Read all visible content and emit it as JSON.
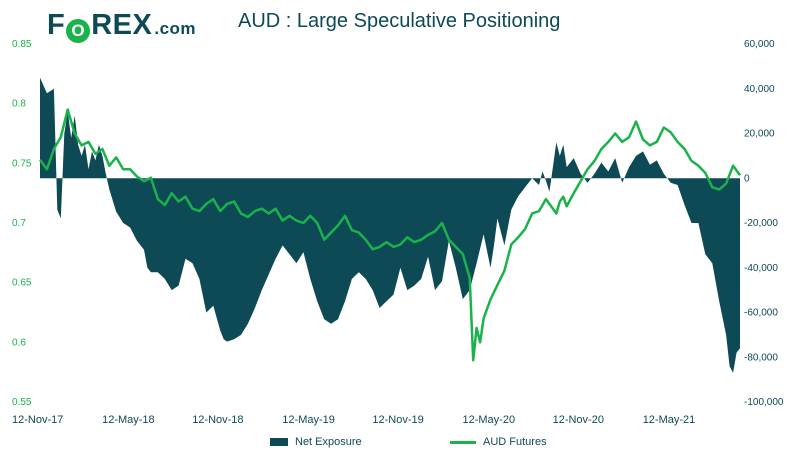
{
  "logo": {
    "prefix": "F",
    "mark": "O",
    "main": "REX",
    "suffix": ".com"
  },
  "chart_data": {
    "type": "area+line",
    "title": "AUD : Large Speculative Positioning",
    "left_axis": {
      "label": "AUD Futures",
      "ylim": [
        0.55,
        0.85
      ],
      "ticks": [
        "0.85",
        "0.8",
        "0.75",
        "0.7",
        "0.65",
        "0.6",
        "0.55"
      ],
      "tick_values": [
        0.85,
        0.8,
        0.75,
        0.7,
        0.65,
        0.6,
        0.55
      ]
    },
    "right_axis": {
      "label": "Net Exposure",
      "ylim": [
        -100000,
        60000
      ],
      "ticks": [
        "60,000",
        "40,000",
        "20,000",
        "0",
        "-20,000",
        "-40,000",
        "-60,000",
        "-80,000",
        "-100,000"
      ],
      "tick_values": [
        60000,
        40000,
        20000,
        0,
        -20000,
        -40000,
        -60000,
        -80000,
        -100000
      ]
    },
    "x_ticks": [
      "12-Nov-17",
      "12-May-18",
      "12-Nov-18",
      "12-May-19",
      "12-Nov-19",
      "12-May-20",
      "12-Nov-20",
      "12-May-21"
    ],
    "x_tick_t": [
      0,
      26,
      52,
      78,
      104,
      130,
      156,
      182
    ],
    "t_max": 202,
    "series": [
      {
        "name": "Net Exposure",
        "axis": "right",
        "color": "#0d4a55",
        "points": [
          [
            0,
            45000
          ],
          [
            2,
            38000
          ],
          [
            4,
            40000
          ],
          [
            5,
            -14000
          ],
          [
            6,
            -18000
          ],
          [
            7,
            20000
          ],
          [
            8,
            30000
          ],
          [
            9,
            18000
          ],
          [
            10,
            28000
          ],
          [
            11,
            15000
          ],
          [
            12,
            10000
          ],
          [
            13,
            15000
          ],
          [
            14,
            4000
          ],
          [
            15,
            12000
          ],
          [
            16,
            8000
          ],
          [
            17,
            15000
          ],
          [
            18,
            10000
          ],
          [
            19,
            2000
          ],
          [
            20,
            -5000
          ],
          [
            22,
            -15000
          ],
          [
            24,
            -20000
          ],
          [
            26,
            -22000
          ],
          [
            28,
            -28000
          ],
          [
            30,
            -32000
          ],
          [
            31,
            -40000
          ],
          [
            32,
            -42000
          ],
          [
            34,
            -42000
          ],
          [
            36,
            -45000
          ],
          [
            38,
            -50000
          ],
          [
            40,
            -48000
          ],
          [
            42,
            -36000
          ],
          [
            44,
            -38000
          ],
          [
            46,
            -45000
          ],
          [
            48,
            -60000
          ],
          [
            50,
            -57000
          ],
          [
            52,
            -68000
          ],
          [
            53,
            -72000
          ],
          [
            54,
            -73000
          ],
          [
            56,
            -72000
          ],
          [
            58,
            -70000
          ],
          [
            60,
            -65000
          ],
          [
            62,
            -58000
          ],
          [
            64,
            -50000
          ],
          [
            66,
            -43000
          ],
          [
            68,
            -36000
          ],
          [
            70,
            -30000
          ],
          [
            72,
            -34000
          ],
          [
            74,
            -38000
          ],
          [
            76,
            -33000
          ],
          [
            78,
            -45000
          ],
          [
            80,
            -55000
          ],
          [
            82,
            -63000
          ],
          [
            84,
            -65000
          ],
          [
            86,
            -63000
          ],
          [
            88,
            -55000
          ],
          [
            90,
            -45000
          ],
          [
            92,
            -42000
          ],
          [
            94,
            -45000
          ],
          [
            96,
            -50000
          ],
          [
            98,
            -58000
          ],
          [
            100,
            -55000
          ],
          [
            102,
            -52000
          ],
          [
            104,
            -40000
          ],
          [
            106,
            -50000
          ],
          [
            108,
            -48000
          ],
          [
            110,
            -45000
          ],
          [
            112,
            -35000
          ],
          [
            114,
            -50000
          ],
          [
            116,
            -46000
          ],
          [
            118,
            -28000
          ],
          [
            120,
            -40000
          ],
          [
            122,
            -54000
          ],
          [
            124,
            -50000
          ],
          [
            126,
            -38000
          ],
          [
            128,
            -25000
          ],
          [
            130,
            -40000
          ],
          [
            131,
            -30000
          ],
          [
            132,
            -18000
          ],
          [
            134,
            -30000
          ],
          [
            136,
            -14000
          ],
          [
            138,
            -8000
          ],
          [
            140,
            -4000
          ],
          [
            142,
            0
          ],
          [
            144,
            -3000
          ],
          [
            145,
            3000
          ],
          [
            146,
            -1000
          ],
          [
            147,
            -6000
          ],
          [
            148,
            5000
          ],
          [
            149,
            16000
          ],
          [
            150,
            10000
          ],
          [
            151,
            15000
          ],
          [
            152,
            5000
          ],
          [
            154,
            9000
          ],
          [
            156,
            2000
          ],
          [
            158,
            -2000
          ],
          [
            160,
            2000
          ],
          [
            162,
            7000
          ],
          [
            164,
            3000
          ],
          [
            166,
            9000
          ],
          [
            168,
            -2000
          ],
          [
            170,
            5000
          ],
          [
            172,
            10000
          ],
          [
            174,
            12000
          ],
          [
            176,
            6000
          ],
          [
            178,
            8000
          ],
          [
            180,
            2000
          ],
          [
            182,
            -2000
          ],
          [
            184,
            -3000
          ],
          [
            186,
            -12000
          ],
          [
            188,
            -20000
          ],
          [
            190,
            -20000
          ],
          [
            192,
            -34000
          ],
          [
            194,
            -38000
          ],
          [
            196,
            -55000
          ],
          [
            198,
            -70000
          ],
          [
            199,
            -84000
          ],
          [
            200,
            -87000
          ],
          [
            201,
            -78000
          ],
          [
            202,
            -76000
          ]
        ]
      },
      {
        "name": "AUD Futures",
        "axis": "left",
        "color": "#19b24b",
        "points": [
          [
            0,
            0.753
          ],
          [
            2,
            0.745
          ],
          [
            4,
            0.762
          ],
          [
            6,
            0.772
          ],
          [
            8,
            0.795
          ],
          [
            10,
            0.775
          ],
          [
            12,
            0.765
          ],
          [
            14,
            0.768
          ],
          [
            16,
            0.758
          ],
          [
            18,
            0.762
          ],
          [
            20,
            0.748
          ],
          [
            22,
            0.755
          ],
          [
            24,
            0.745
          ],
          [
            26,
            0.745
          ],
          [
            28,
            0.739
          ],
          [
            30,
            0.735
          ],
          [
            32,
            0.738
          ],
          [
            34,
            0.72
          ],
          [
            36,
            0.715
          ],
          [
            38,
            0.725
          ],
          [
            40,
            0.718
          ],
          [
            42,
            0.722
          ],
          [
            44,
            0.712
          ],
          [
            46,
            0.71
          ],
          [
            48,
            0.716
          ],
          [
            50,
            0.72
          ],
          [
            52,
            0.71
          ],
          [
            54,
            0.716
          ],
          [
            56,
            0.718
          ],
          [
            58,
            0.708
          ],
          [
            60,
            0.705
          ],
          [
            62,
            0.71
          ],
          [
            64,
            0.712
          ],
          [
            66,
            0.708
          ],
          [
            68,
            0.712
          ],
          [
            70,
            0.702
          ],
          [
            72,
            0.706
          ],
          [
            74,
            0.702
          ],
          [
            76,
            0.7
          ],
          [
            78,
            0.706
          ],
          [
            80,
            0.7
          ],
          [
            82,
            0.686
          ],
          [
            84,
            0.692
          ],
          [
            86,
            0.698
          ],
          [
            88,
            0.706
          ],
          [
            90,
            0.694
          ],
          [
            92,
            0.692
          ],
          [
            94,
            0.686
          ],
          [
            96,
            0.678
          ],
          [
            98,
            0.68
          ],
          [
            100,
            0.684
          ],
          [
            102,
            0.68
          ],
          [
            104,
            0.682
          ],
          [
            106,
            0.688
          ],
          [
            108,
            0.684
          ],
          [
            110,
            0.686
          ],
          [
            112,
            0.69
          ],
          [
            114,
            0.693
          ],
          [
            116,
            0.7
          ],
          [
            118,
            0.686
          ],
          [
            120,
            0.68
          ],
          [
            122,
            0.674
          ],
          [
            124,
            0.654
          ],
          [
            125,
            0.585
          ],
          [
            126,
            0.612
          ],
          [
            127,
            0.6
          ],
          [
            128,
            0.62
          ],
          [
            130,
            0.636
          ],
          [
            132,
            0.648
          ],
          [
            134,
            0.66
          ],
          [
            136,
            0.682
          ],
          [
            138,
            0.688
          ],
          [
            140,
            0.695
          ],
          [
            142,
            0.708
          ],
          [
            144,
            0.71
          ],
          [
            146,
            0.72
          ],
          [
            148,
            0.712
          ],
          [
            149,
            0.708
          ],
          [
            150,
            0.718
          ],
          [
            151,
            0.722
          ],
          [
            152,
            0.714
          ],
          [
            154,
            0.725
          ],
          [
            156,
            0.735
          ],
          [
            158,
            0.745
          ],
          [
            160,
            0.752
          ],
          [
            162,
            0.762
          ],
          [
            164,
            0.768
          ],
          [
            166,
            0.775
          ],
          [
            168,
            0.768
          ],
          [
            170,
            0.772
          ],
          [
            172,
            0.785
          ],
          [
            174,
            0.77
          ],
          [
            176,
            0.765
          ],
          [
            178,
            0.768
          ],
          [
            180,
            0.78
          ],
          [
            182,
            0.776
          ],
          [
            184,
            0.768
          ],
          [
            186,
            0.762
          ],
          [
            188,
            0.752
          ],
          [
            190,
            0.748
          ],
          [
            192,
            0.742
          ],
          [
            194,
            0.73
          ],
          [
            196,
            0.728
          ],
          [
            198,
            0.733
          ],
          [
            200,
            0.748
          ],
          [
            202,
            0.74
          ]
        ]
      }
    ],
    "legend": [
      "Net Exposure",
      "AUD Futures"
    ]
  }
}
